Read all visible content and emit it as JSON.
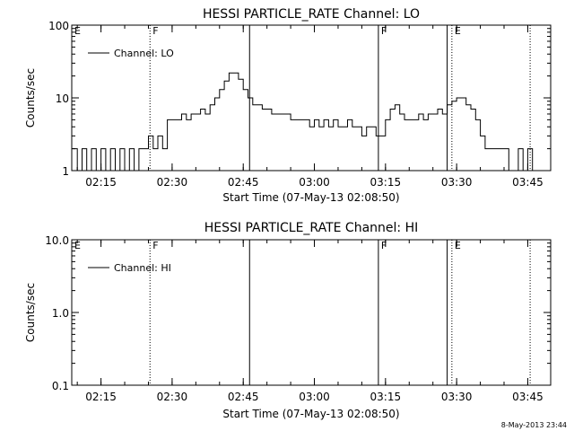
{
  "chart_data": [
    {
      "type": "line",
      "title": "HESSI PARTICLE_RATE Channel: LO",
      "xlabel": "Start Time (07-May-13 02:08:50)",
      "ylabel": "Counts/sec",
      "y_scale": "log",
      "ylim": [
        1,
        100
      ],
      "ytick_labels": [
        "1",
        "10",
        "100"
      ],
      "yticks": [
        1,
        10,
        100
      ],
      "xlim": [
        "02:08:50",
        "03:49:50"
      ],
      "xtick_labels": [
        "02:15",
        "02:30",
        "02:45",
        "03:00",
        "03:15",
        "03:30",
        "03:45"
      ],
      "xticks": [
        "02:15",
        "02:30",
        "02:45",
        "03:00",
        "03:15",
        "03:30",
        "03:45"
      ],
      "legend": {
        "position": "top-left",
        "entries": [
          "Channel: LO"
        ]
      },
      "grid": false,
      "series": [
        {
          "name": "Channel: LO",
          "x": [
            "02:09",
            "02:10",
            "02:11",
            "02:12",
            "02:13",
            "02:14",
            "02:15",
            "02:16",
            "02:17",
            "02:18",
            "02:19",
            "02:20",
            "02:21",
            "02:22",
            "02:23",
            "02:24",
            "02:25",
            "02:26",
            "02:27",
            "02:28",
            "02:29",
            "02:30",
            "02:31",
            "02:32",
            "02:33",
            "02:34",
            "02:35",
            "02:36",
            "02:37",
            "02:38",
            "02:39",
            "02:40",
            "02:41",
            "02:42",
            "02:43",
            "02:44",
            "02:45",
            "02:46",
            "02:47",
            "02:48",
            "02:49",
            "02:50",
            "02:51",
            "02:52",
            "02:53",
            "02:54",
            "02:55",
            "02:56",
            "02:57",
            "02:58",
            "02:59",
            "03:00",
            "03:01",
            "03:02",
            "03:03",
            "03:04",
            "03:05",
            "03:06",
            "03:07",
            "03:08",
            "03:09",
            "03:10",
            "03:11",
            "03:12",
            "03:13",
            "03:14",
            "03:15",
            "03:16",
            "03:17",
            "03:18",
            "03:19",
            "03:20",
            "03:21",
            "03:22",
            "03:23",
            "03:24",
            "03:25",
            "03:26",
            "03:27",
            "03:28",
            "03:29",
            "03:30",
            "03:31",
            "03:32",
            "03:33",
            "03:34",
            "03:35",
            "03:36",
            "03:37",
            "03:38",
            "03:39",
            "03:40",
            "03:41",
            "03:42",
            "03:43",
            "03:44",
            "03:45",
            "03:46"
          ],
          "y": [
            2,
            1,
            2,
            1,
            2,
            1,
            2,
            1,
            2,
            1,
            2,
            1,
            2,
            1,
            2,
            2,
            3,
            2,
            3,
            2,
            5,
            5,
            5,
            6,
            5,
            6,
            6,
            7,
            6,
            8,
            10,
            13,
            17,
            22,
            22,
            18,
            13,
            10,
            8,
            8,
            7,
            7,
            6,
            6,
            6,
            6,
            5,
            5,
            5,
            5,
            4,
            5,
            4,
            5,
            4,
            5,
            4,
            4,
            5,
            4,
            4,
            3,
            4,
            4,
            3,
            3,
            5,
            7,
            8,
            6,
            5,
            5,
            5,
            6,
            5,
            6,
            6,
            7,
            6,
            8,
            9,
            10,
            10,
            8,
            7,
            5,
            3,
            2,
            2,
            2,
            2,
            2,
            1,
            1,
            2,
            1,
            2,
            1
          ]
        }
      ],
      "annotations": [
        {
          "type": "solid-line",
          "time": "02:46:20"
        },
        {
          "type": "solid-line",
          "time": "03:13:30"
        },
        {
          "type": "solid-line",
          "time": "03:28:00"
        },
        {
          "type": "dotted-line",
          "time": "02:25:20"
        },
        {
          "type": "dotted-line",
          "time": "03:29:00"
        },
        {
          "type": "dotted-line",
          "time": "03:45:30"
        },
        {
          "type": "flag",
          "label": "E",
          "time": "02:08:50"
        },
        {
          "type": "flag",
          "label": "F",
          "time": "02:25:20"
        },
        {
          "type": "flag",
          "label": "F",
          "time": "03:13:30"
        },
        {
          "type": "flag",
          "label": "E",
          "time": "03:29:00"
        }
      ]
    },
    {
      "type": "line",
      "title": "HESSI PARTICLE_RATE Channel: HI",
      "xlabel": "Start Time (07-May-13 02:08:50)",
      "ylabel": "Counts/sec",
      "y_scale": "log",
      "ylim": [
        0.1,
        10
      ],
      "ytick_labels": [
        "0.1",
        "1.0",
        "10.0"
      ],
      "yticks": [
        0.1,
        1,
        10
      ],
      "xlim": [
        "02:08:50",
        "03:49:50"
      ],
      "xtick_labels": [
        "02:15",
        "02:30",
        "02:45",
        "03:00",
        "03:15",
        "03:30",
        "03:45"
      ],
      "xticks": [
        "02:15",
        "02:30",
        "02:45",
        "03:00",
        "03:15",
        "03:30",
        "03:45"
      ],
      "legend": {
        "position": "top-left",
        "entries": [
          "Channel: HI"
        ]
      },
      "grid": false,
      "series": [
        {
          "name": "Channel: HI",
          "x": [],
          "y": []
        }
      ],
      "annotations": [
        {
          "type": "solid-line",
          "time": "02:46:20"
        },
        {
          "type": "solid-line",
          "time": "03:13:30"
        },
        {
          "type": "solid-line",
          "time": "03:28:00"
        },
        {
          "type": "dotted-line",
          "time": "02:25:20"
        },
        {
          "type": "dotted-line",
          "time": "03:29:00"
        },
        {
          "type": "dotted-line",
          "time": "03:45:30"
        },
        {
          "type": "flag",
          "label": "E",
          "time": "02:08:50"
        },
        {
          "type": "flag",
          "label": "F",
          "time": "02:25:20"
        },
        {
          "type": "flag",
          "label": "F",
          "time": "03:13:30"
        },
        {
          "type": "flag",
          "label": "E",
          "time": "03:29:00"
        }
      ]
    }
  ],
  "footer": {
    "timestamp": "8-May-2013 23:44"
  },
  "colors": {
    "background": "#ffffff",
    "foreground": "#000000"
  }
}
